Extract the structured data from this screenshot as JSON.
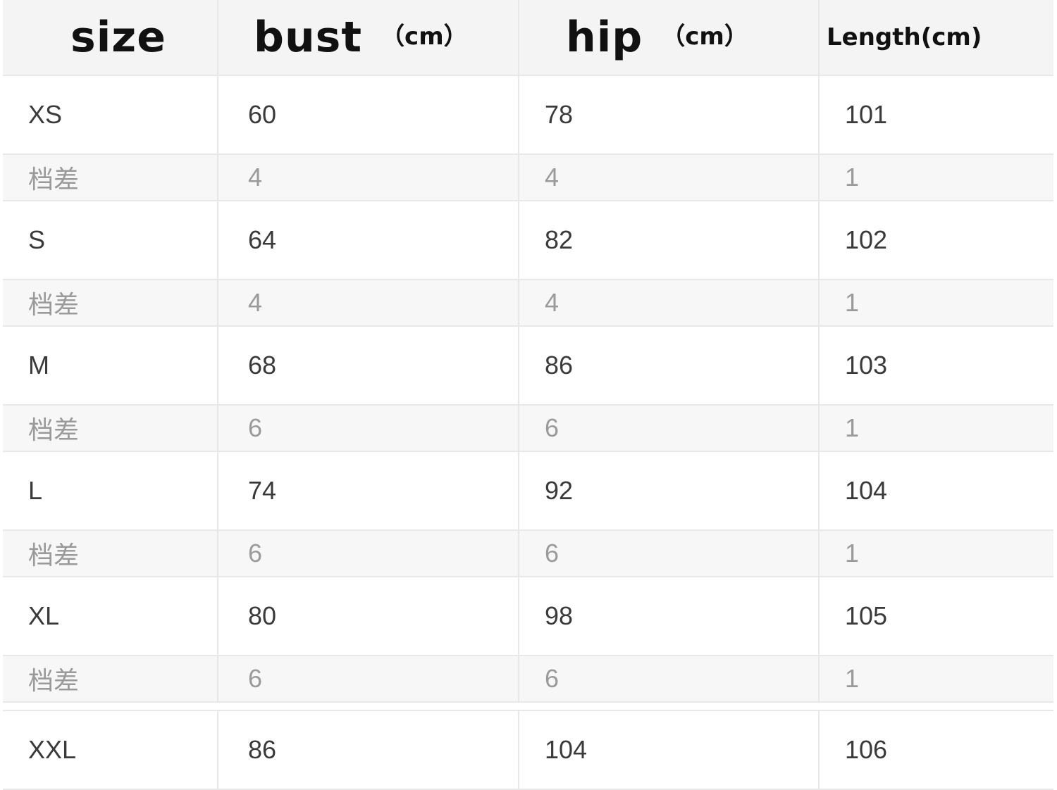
{
  "header": {
    "size": "size",
    "bust": "bust",
    "bust_unit": "（cm）",
    "hip": "hip",
    "hip_unit": "（cm）",
    "length": "Length",
    "length_unit": "(cm)"
  },
  "diff_label": "档差",
  "rows": [
    {
      "size": "XS",
      "bust": "60",
      "hip": "78",
      "length": "101",
      "diff": {
        "bust": "4",
        "hip": "4",
        "length": "1"
      }
    },
    {
      "size": "S",
      "bust": "64",
      "hip": "82",
      "length": "102",
      "diff": {
        "bust": "4",
        "hip": "4",
        "length": "1"
      }
    },
    {
      "size": "M",
      "bust": "68",
      "hip": "86",
      "length": "103",
      "diff": {
        "bust": "6",
        "hip": "6",
        "length": "1"
      }
    },
    {
      "size": "L",
      "bust": "74",
      "hip": "92",
      "length": "104",
      "diff": {
        "bust": "6",
        "hip": "6",
        "length": "1"
      }
    },
    {
      "size": "XL",
      "bust": "80",
      "hip": "98",
      "length": "105",
      "diff": {
        "bust": "6",
        "hip": "6",
        "length": "1"
      }
    },
    {
      "size": "XXL",
      "bust": "86",
      "hip": "104",
      "length": "106"
    }
  ]
}
